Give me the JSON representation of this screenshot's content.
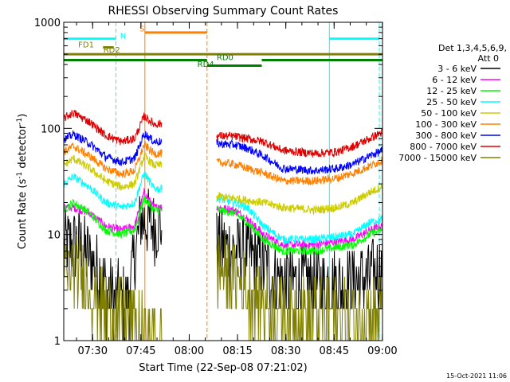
{
  "chart_data": {
    "type": "line",
    "title": "RHESSI Observing Summary Count Rates",
    "xlabel": "Start Time (22-Sep-08 07:21:02)",
    "ylabel_main": "Count Rate (s",
    "ylabel_sup1": "-1",
    "ylabel_mid": " detector",
    "ylabel_sup2": "-1",
    "ylabel_end": ")",
    "yscale": "log",
    "ylim": [
      1,
      1000
    ],
    "xlim": [
      0,
      99
    ],
    "x_unit": "minutes since 07:21:02",
    "xticks": [
      {
        "label": "07:30",
        "value": 8.97
      },
      {
        "label": "07:45",
        "value": 23.97
      },
      {
        "label": "08:00",
        "value": 38.97
      },
      {
        "label": "08:15",
        "value": 53.97
      },
      {
        "label": "08:30",
        "value": 68.97
      },
      {
        "label": "08:45",
        "value": 83.97
      },
      {
        "label": "09:00",
        "value": 98.97
      }
    ],
    "yticks": [
      {
        "label": "1",
        "value": 1
      },
      {
        "label": "10",
        "value": 10
      },
      {
        "label": "100",
        "value": 100
      },
      {
        "label": "1000",
        "value": 1000
      }
    ],
    "legend_header": [
      "Det 1,3,4,5,6,9,",
      "Att 0"
    ],
    "legend_position": "right",
    "segments": [
      [
        0,
        30.5
      ],
      [
        47.5,
        99
      ]
    ],
    "series": [
      {
        "name": "3 - 6 keV",
        "color": "#000000",
        "points": [
          [
            0,
            8
          ],
          [
            5,
            8
          ],
          [
            10,
            5
          ],
          [
            15,
            2.5
          ],
          [
            20,
            2.5
          ],
          [
            24,
            14
          ],
          [
            28,
            12
          ],
          [
            30,
            12
          ],
          [
            47.5,
            8
          ],
          [
            55,
            7
          ],
          [
            60,
            6
          ],
          [
            65,
            4
          ],
          [
            70,
            3.5
          ],
          [
            80,
            3.5
          ],
          [
            90,
            3.5
          ],
          [
            95,
            4
          ],
          [
            99,
            5
          ]
        ]
      },
      {
        "name": "6 - 12 keV",
        "color": "#ff00ff",
        "points": [
          [
            0,
            18
          ],
          [
            3,
            18
          ],
          [
            8,
            16
          ],
          [
            13,
            12
          ],
          [
            18,
            11
          ],
          [
            22,
            12
          ],
          [
            25,
            25
          ],
          [
            28,
            18
          ],
          [
            30,
            18
          ],
          [
            47.5,
            18
          ],
          [
            53,
            17
          ],
          [
            57,
            14
          ],
          [
            62,
            10
          ],
          [
            68,
            8
          ],
          [
            78,
            8
          ],
          [
            90,
            9
          ],
          [
            95,
            11
          ],
          [
            99,
            12
          ]
        ]
      },
      {
        "name": "12 - 25 keV",
        "color": "#00ff00",
        "points": [
          [
            0,
            17
          ],
          [
            3,
            20
          ],
          [
            8,
            16
          ],
          [
            13,
            11
          ],
          [
            18,
            10
          ],
          [
            22,
            11
          ],
          [
            25,
            22
          ],
          [
            28,
            17
          ],
          [
            30,
            17
          ],
          [
            47.5,
            17
          ],
          [
            53,
            16
          ],
          [
            57,
            13
          ],
          [
            62,
            9
          ],
          [
            68,
            7
          ],
          [
            78,
            7
          ],
          [
            90,
            8
          ],
          [
            95,
            10
          ],
          [
            99,
            11
          ]
        ]
      },
      {
        "name": "25 - 50 keV",
        "color": "#00ffff",
        "points": [
          [
            0,
            30
          ],
          [
            3,
            35
          ],
          [
            8,
            28
          ],
          [
            13,
            20
          ],
          [
            18,
            18
          ],
          [
            22,
            20
          ],
          [
            25,
            38
          ],
          [
            28,
            27
          ],
          [
            30,
            27
          ],
          [
            47.5,
            22
          ],
          [
            53,
            20
          ],
          [
            57,
            18
          ],
          [
            62,
            12
          ],
          [
            68,
            9
          ],
          [
            78,
            9
          ],
          [
            90,
            10
          ],
          [
            95,
            13
          ],
          [
            99,
            14
          ]
        ]
      },
      {
        "name": "50 - 100 keV",
        "color": "#cccc00",
        "points": [
          [
            0,
            45
          ],
          [
            3,
            52
          ],
          [
            8,
            42
          ],
          [
            13,
            32
          ],
          [
            18,
            28
          ],
          [
            22,
            30
          ],
          [
            25,
            55
          ],
          [
            28,
            45
          ],
          [
            30,
            45
          ],
          [
            47.5,
            23
          ],
          [
            53,
            22
          ],
          [
            57,
            21
          ],
          [
            62,
            20
          ],
          [
            68,
            18
          ],
          [
            78,
            17
          ],
          [
            85,
            18
          ],
          [
            90,
            20
          ],
          [
            95,
            25
          ],
          [
            99,
            28
          ]
        ]
      },
      {
        "name": "100 - 300 keV",
        "color": "#ff8000",
        "points": [
          [
            0,
            60
          ],
          [
            3,
            68
          ],
          [
            8,
            55
          ],
          [
            13,
            42
          ],
          [
            18,
            37
          ],
          [
            22,
            40
          ],
          [
            25,
            70
          ],
          [
            28,
            58
          ],
          [
            30,
            58
          ],
          [
            47.5,
            48
          ],
          [
            53,
            46
          ],
          [
            57,
            42
          ],
          [
            62,
            38
          ],
          [
            68,
            32
          ],
          [
            78,
            32
          ],
          [
            85,
            34
          ],
          [
            90,
            38
          ],
          [
            95,
            44
          ],
          [
            99,
            50
          ]
        ]
      },
      {
        "name": "300 - 800 keV",
        "color": "#0000ff",
        "points": [
          [
            0,
            78
          ],
          [
            3,
            88
          ],
          [
            8,
            72
          ],
          [
            13,
            54
          ],
          [
            18,
            48
          ],
          [
            22,
            52
          ],
          [
            25,
            90
          ],
          [
            28,
            75
          ],
          [
            30,
            75
          ],
          [
            47.5,
            72
          ],
          [
            53,
            70
          ],
          [
            57,
            65
          ],
          [
            62,
            55
          ],
          [
            68,
            42
          ],
          [
            78,
            40
          ],
          [
            85,
            42
          ],
          [
            90,
            46
          ],
          [
            95,
            55
          ],
          [
            99,
            62
          ]
        ]
      },
      {
        "name": "800 - 7000 keV",
        "color": "#dd0000",
        "points": [
          [
            0,
            125
          ],
          [
            3,
            140
          ],
          [
            8,
            115
          ],
          [
            13,
            86
          ],
          [
            18,
            75
          ],
          [
            22,
            80
          ],
          [
            25,
            130
          ],
          [
            28,
            110
          ],
          [
            30,
            110
          ],
          [
            47.5,
            85
          ],
          [
            53,
            84
          ],
          [
            57,
            80
          ],
          [
            62,
            75
          ],
          [
            68,
            62
          ],
          [
            78,
            58
          ],
          [
            85,
            60
          ],
          [
            90,
            68
          ],
          [
            95,
            80
          ],
          [
            99,
            92
          ]
        ]
      },
      {
        "name": "7000 - 15000 keV",
        "color": "#808000",
        "points": [
          [
            0,
            4.5
          ],
          [
            5,
            4.5
          ],
          [
            10,
            2.5
          ],
          [
            15,
            1.8
          ],
          [
            20,
            1.8
          ],
          [
            24,
            1.2
          ],
          [
            28,
            1
          ],
          [
            47.5,
            5
          ],
          [
            55,
            3.5
          ],
          [
            60,
            2.5
          ],
          [
            65,
            2
          ],
          [
            70,
            1.8
          ],
          [
            80,
            1.8
          ],
          [
            90,
            1.6
          ],
          [
            95,
            2
          ],
          [
            99,
            2
          ]
        ]
      }
    ],
    "vlines": [
      {
        "x": 0,
        "color": "#00ffff",
        "style": "solid"
      },
      {
        "x": 16.2,
        "color": "#00ffff",
        "style": "dashed"
      },
      {
        "x": 25.2,
        "color": "#ff8000",
        "style": "solid"
      },
      {
        "x": 44.5,
        "color": "#ff8000",
        "style": "dashed"
      },
      {
        "x": 82.5,
        "color": "#00ffff",
        "style": "solid"
      },
      {
        "x": 98,
        "color": "#00ffff",
        "style": "dashed"
      }
    ],
    "annotations": [
      {
        "label": "N",
        "color": "#00ffff",
        "x": 17.5,
        "y": 700,
        "bar": [
          [
            0,
            16.2
          ],
          [
            82.5,
            98
          ]
        ],
        "bar_y": 700,
        "bar_color": "#00ffff"
      },
      {
        "label": "S",
        "color": "#ff8000",
        "x": 23.5,
        "y": 820,
        "bar": [
          [
            25.2,
            44.5
          ]
        ],
        "bar_y": 800,
        "bar_color": "#ff8000"
      },
      {
        "label": "FD1",
        "color": "#808000",
        "x": 4.5,
        "y": 580,
        "bar": [
          [
            12.2,
            15.5
          ]
        ],
        "bar_y": 580,
        "bar_color": "#808000"
      },
      {
        "label": "RD2",
        "color": "#808000",
        "x": 12.3,
        "y": 520,
        "bar": [
          [
            0,
            99
          ]
        ],
        "bar_y": 500,
        "bar_color": "#808000"
      },
      {
        "label": "RD0",
        "color": "#008000",
        "x": 47.5,
        "y": 440,
        "bar": [
          [
            0,
            44.5
          ],
          [
            61.5,
            99
          ]
        ],
        "bar_y": 440,
        "bar_color": "#008000"
      },
      {
        "label": "RD4",
        "color": "#008000",
        "x": 41.5,
        "y": 380,
        "bar": [
          [
            44.5,
            61.5
          ]
        ],
        "bar_y": 390,
        "bar_color": "#008000"
      }
    ],
    "grid": false
  },
  "footer": {
    "timestamp": "15-Oct-2021 11:06"
  }
}
